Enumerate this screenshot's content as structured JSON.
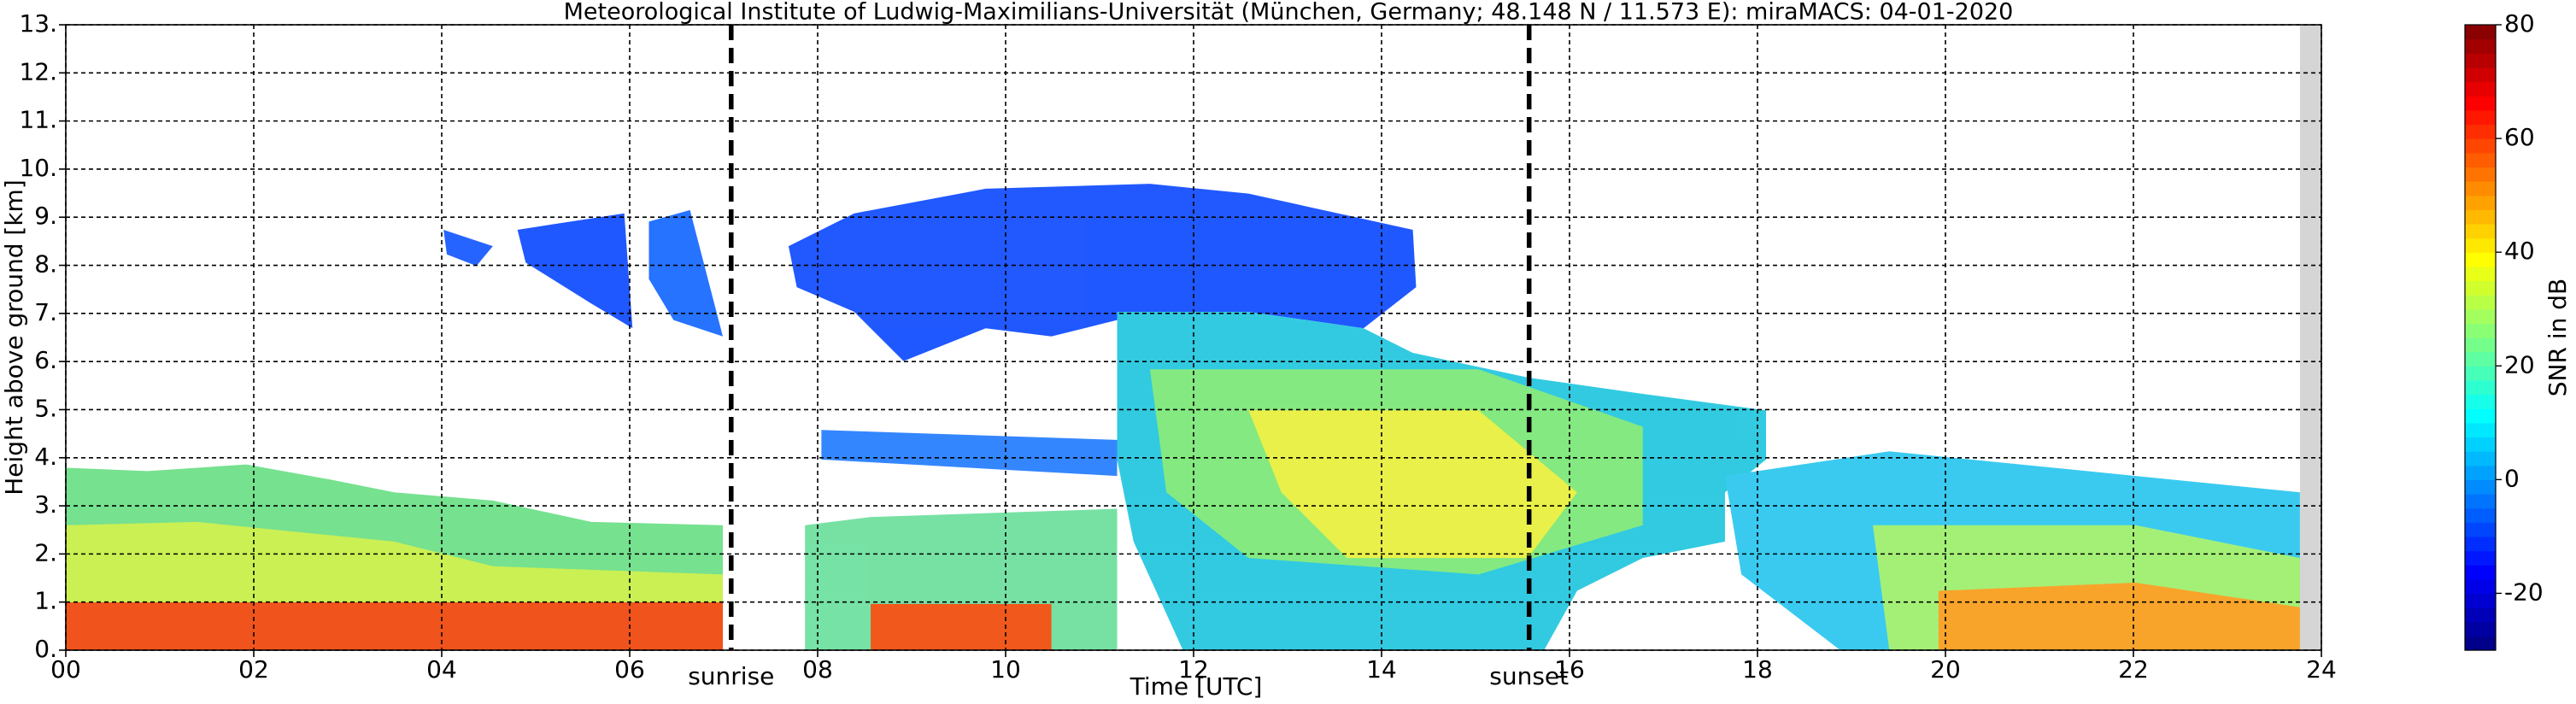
{
  "chart_data": {
    "type": "time-height",
    "title": "Meteorological Institute of Ludwig-Maximilians-Universität (München, Germany; 48.148 N / 11.573 E):    miraMACS: 04-01-2020",
    "xlabel": "Time [UTC]",
    "ylabel": "Height above ground [km]",
    "xlim": [
      0,
      24
    ],
    "ylim": [
      0,
      13
    ],
    "xticks": [
      {
        "value": 0,
        "label": "00"
      },
      {
        "value": 2,
        "label": "02"
      },
      {
        "value": 4,
        "label": "04"
      },
      {
        "value": 6,
        "label": "06"
      },
      {
        "value": 8,
        "label": "08"
      },
      {
        "value": 10,
        "label": "10"
      },
      {
        "value": 12,
        "label": "12"
      },
      {
        "value": 14,
        "label": "14"
      },
      {
        "value": 16,
        "label": "16"
      },
      {
        "value": 18,
        "label": "18"
      },
      {
        "value": 20,
        "label": "20"
      },
      {
        "value": 22,
        "label": "22"
      },
      24
    ],
    "yticks": [
      {
        "value": 0,
        "label": "0."
      },
      {
        "value": 1,
        "label": "1."
      },
      {
        "value": 2,
        "label": "2."
      },
      {
        "value": 3,
        "label": "3."
      },
      {
        "value": 4,
        "label": "4."
      },
      {
        "value": 5,
        "label": "5."
      },
      {
        "value": 6,
        "label": "6."
      },
      {
        "value": 7,
        "label": "7."
      },
      {
        "value": 8,
        "label": "8."
      },
      {
        "value": 9,
        "label": "9."
      },
      {
        "value": 10,
        "label": "10."
      },
      {
        "value": 11,
        "label": "11."
      },
      {
        "value": 12,
        "label": "12."
      },
      {
        "value": 13,
        "label": "13."
      }
    ],
    "grid": true,
    "annotations": [
      {
        "text": "sunrise",
        "x": 7.08
      },
      {
        "text": "sunset",
        "x": 15.57
      }
    ],
    "colorbar": {
      "label": "SNR in dB",
      "colormap": "jet",
      "lim": [
        -30,
        80
      ],
      "ticks": [
        -20,
        0,
        20,
        40,
        60,
        80
      ]
    }
  }
}
